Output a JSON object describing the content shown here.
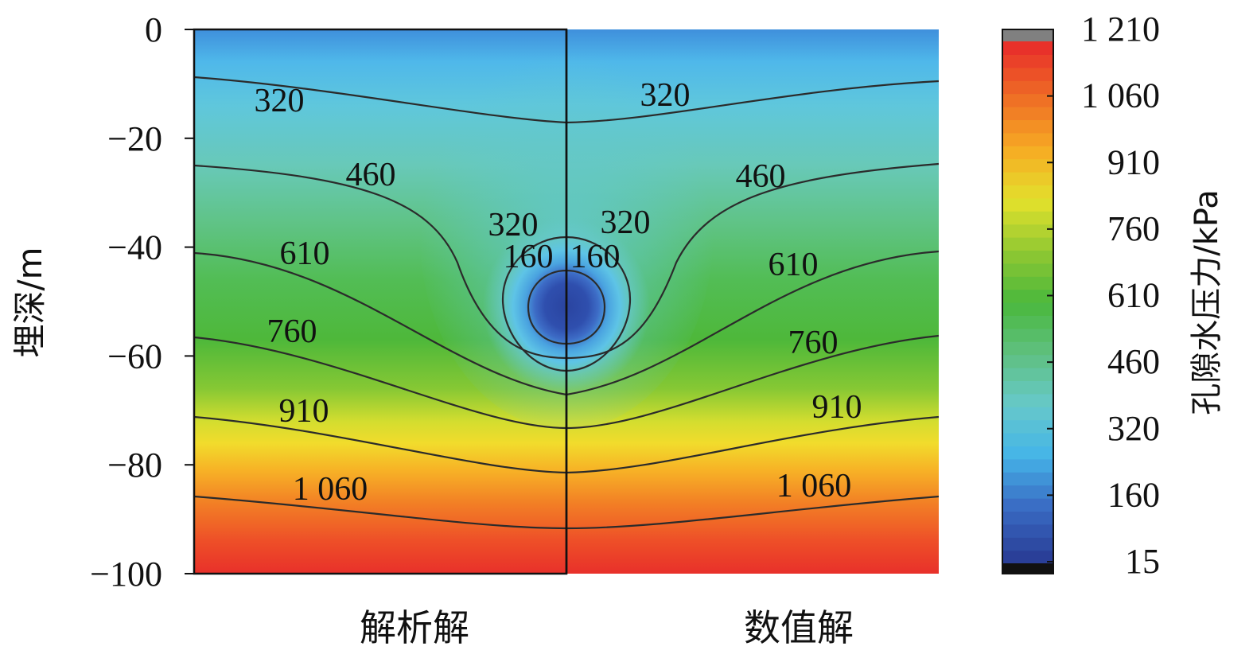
{
  "chart_data": {
    "type": "heatmap",
    "subtype": "filled-contour",
    "ylabel": "埋深/m",
    "ylim": [
      -100,
      0
    ],
    "yticks": [
      0,
      -20,
      -40,
      -60,
      -80,
      -100
    ],
    "ytick_labels": [
      "0",
      "−20",
      "−40",
      "−60",
      "−80",
      "−100"
    ],
    "panels": [
      {
        "name": "解析解",
        "side": "left",
        "framed": true
      },
      {
        "name": "数值解",
        "side": "right",
        "framed": false
      }
    ],
    "colorbar": {
      "title": "孔隙水压力/kPa",
      "range": [
        15,
        1210
      ],
      "ticks": [
        15,
        160,
        320,
        460,
        610,
        760,
        910,
        1060,
        1210
      ],
      "tick_labels": [
        "15",
        "160",
        "320",
        "460",
        "610",
        "760",
        "910",
        "1 060",
        "1 210"
      ],
      "colors": [
        "#2a3f98",
        "#3a6cc4",
        "#45b5e8",
        "#67c9c9",
        "#5fc080",
        "#4ab83c",
        "#90c832",
        "#e3e12c",
        "#f6ac24",
        "#ef6f25",
        "#e8312a"
      ],
      "over_color": "#808080",
      "under_color": "#111111"
    },
    "tunnel": {
      "center_depth": -52,
      "x_center": 0
    },
    "contours": [
      {
        "level": 1060,
        "label": "1 060",
        "left_label": "1 060",
        "right_label": "1 060"
      },
      {
        "level": 910,
        "label": "910",
        "left_label": "910",
        "right_label": "910"
      },
      {
        "level": 760,
        "label": "760",
        "left_label": "760",
        "right_label": "760"
      },
      {
        "level": 610,
        "label": "610",
        "left_label": "610",
        "right_label": "610"
      },
      {
        "level": 460,
        "label": "460",
        "left_label": "460",
        "right_label": "460"
      },
      {
        "level": 320,
        "label": "320",
        "left_label": "320",
        "right_label": "320"
      },
      {
        "level": 320,
        "label": "320",
        "note": "inner loop around tunnel",
        "left_label": "320",
        "right_label": "320"
      },
      {
        "level": 160,
        "label": "160",
        "left_label": "160",
        "right_label": "160"
      }
    ]
  }
}
